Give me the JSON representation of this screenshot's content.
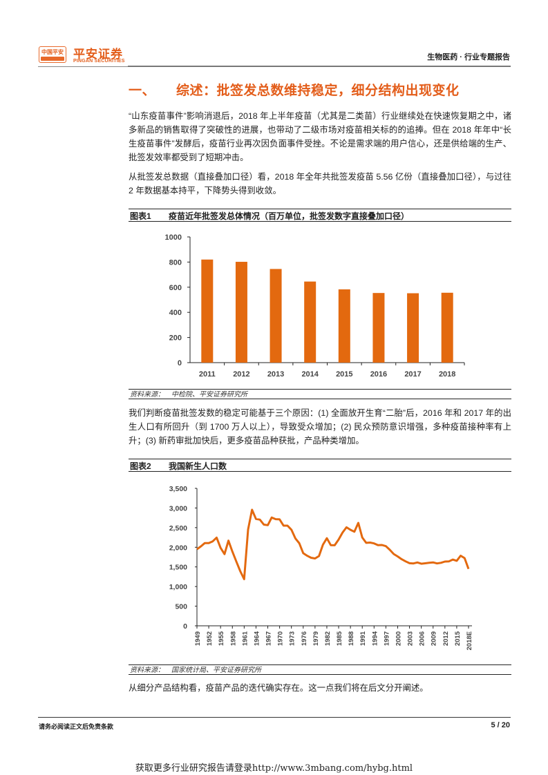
{
  "header": {
    "logo_badge": "中国平安",
    "logo_badge_sub": "保险·银行·投资",
    "brand_cn": "平安证券",
    "brand_en": "PINGAN SECURITIES",
    "report_type": "生物医药 · 行业专题报告"
  },
  "section": {
    "number": "一、",
    "title": "综述：批签发总数维持稳定，细分结构出现变化"
  },
  "paragraphs": [
    "“山东疫苗事件”影响消退后，2018 年上半年疫苗（尤其是二类苗）行业继续处在快速恢复期之中，诸多新品的销售取得了突破性的进展，也带动了二级市场对疫苗相关标的的追捧。但在 2018 年年中“长生疫苗事件”发酵后，疫苗行业再次因负面事件受挫。不论是需求端的用户信心，还是供给端的生产、批签发效率都受到了短期冲击。",
    "从批签发总数据（直接叠加口径）看，2018 年全年共批签发疫苗 5.56 亿份（直接叠加口径），与过往 2 年数据基本持平，下降势头得到收敛。",
    "我们判断疫苗批签发数的稳定可能基于三个原因：(1) 全面放开生育“二胎”后，2016 年和 2017 年的出生人口有所回升（到 1700 万人以上），导致受众增加；(2) 民众预防意识增强，多种疫苗接种率有上升；(3) 新药审批加快后，更多疫苗品种获批，产品种类增加。",
    "从细分产品结构看，疫苗产品的迭代确实存在。这一点我们将在后文分开阐述。"
  ],
  "figure1": {
    "label": "图表1",
    "title": "疫苗近年批签发总体情况（百万单位，批签发数字直接叠加口径）",
    "source_label": "资料来源：",
    "source": "中检院、平安证券研究所"
  },
  "figure2": {
    "label": "图表2",
    "title": "我国新生人口数",
    "source_label": "资料来源：",
    "source": "国家统计局、平安证券研究所"
  },
  "chart_data": [
    {
      "type": "bar",
      "title": "疫苗近年批签发总体情况（百万单位，批签发数字直接叠加口径）",
      "categories": [
        "2011",
        "2012",
        "2013",
        "2014",
        "2015",
        "2016",
        "2017",
        "2018"
      ],
      "values": [
        820,
        802,
        745,
        645,
        583,
        554,
        552,
        556
      ],
      "xlabel": "",
      "ylabel": "",
      "ylim": [
        0,
        1000
      ],
      "yticks": [
        "0",
        "200",
        "400",
        "600",
        "800",
        "1000"
      ],
      "grid": false,
      "legend": null,
      "color": "#e3690f"
    },
    {
      "type": "line",
      "title": "我国新生人口数",
      "x": [
        "1949",
        "1950",
        "1951",
        "1952",
        "1953",
        "1954",
        "1955",
        "1956",
        "1957",
        "1958",
        "1959",
        "1960",
        "1961",
        "1962",
        "1963",
        "1964",
        "1965",
        "1966",
        "1967",
        "1968",
        "1969",
        "1970",
        "1971",
        "1972",
        "1973",
        "1974",
        "1975",
        "1976",
        "1977",
        "1978",
        "1979",
        "1980",
        "1981",
        "1982",
        "1983",
        "1984",
        "1985",
        "1986",
        "1987",
        "1988",
        "1989",
        "1990",
        "1991",
        "1992",
        "1993",
        "1994",
        "1995",
        "1996",
        "1997",
        "1998",
        "1999",
        "2000",
        "2001",
        "2002",
        "2003",
        "2004",
        "2005",
        "2006",
        "2007",
        "2008",
        "2009",
        "2010",
        "2011",
        "2012",
        "2013",
        "2014",
        "2015",
        "2016",
        "2017",
        "2018E"
      ],
      "values": [
        1950,
        2023,
        2107,
        2105,
        2151,
        2245,
        1984,
        1825,
        2169,
        1889,
        1635,
        1389,
        1187,
        2451,
        2954,
        2721,
        2704,
        2577,
        2563,
        2757,
        2715,
        2710,
        2551,
        2550,
        2447,
        2226,
        2102,
        1849,
        1783,
        1733,
        1715,
        1776,
        2064,
        2230,
        2052,
        2050,
        2196,
        2374,
        2508,
        2445,
        2396,
        2621,
        2250,
        2113,
        2120,
        2098,
        2052,
        2057,
        2028,
        1934,
        1827,
        1765,
        1696,
        1641,
        1594,
        1588,
        1612,
        1581,
        1591,
        1604,
        1615,
        1588,
        1604,
        1635,
        1640,
        1687,
        1655,
        1786,
        1723,
        1450
      ],
      "xticks": [
        "1949",
        "1952",
        "1955",
        "1958",
        "1961",
        "1964",
        "1967",
        "1970",
        "1973",
        "1976",
        "1979",
        "1982",
        "1985",
        "1988",
        "1991",
        "1994",
        "1997",
        "2000",
        "2003",
        "2006",
        "2009",
        "2012",
        "2015",
        "2018E"
      ],
      "yticks": [
        "0",
        "500",
        "1,000",
        "1,500",
        "2,000",
        "2,500",
        "3,000",
        "3,500"
      ],
      "ylim": [
        0,
        3500
      ],
      "xlabel": "",
      "ylabel": "",
      "grid": false,
      "legend": null,
      "color": "#e3690f"
    }
  ],
  "footer": {
    "disclaimer": "请务必阅读正文后免责条款",
    "page": "5 / 20",
    "promo": "获取更多行业研究报告请登录http://www.3mbang.com/hybg.html"
  }
}
